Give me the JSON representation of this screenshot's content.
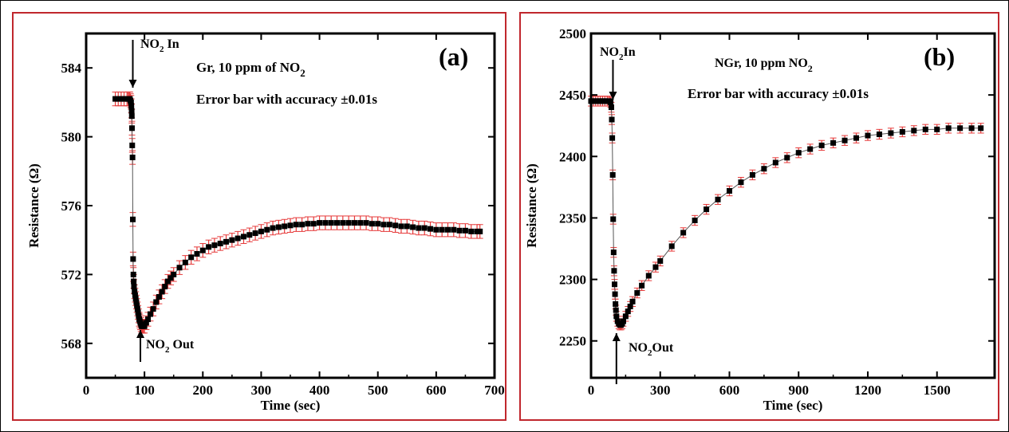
{
  "chart_data": [
    {
      "type": "scatter",
      "panel_label": "(a)",
      "title": "Gr, 10 ppm of NO",
      "title_sub": "2",
      "subtitle": "Error bar with accuracy ±0.01s",
      "xlabel": "Time (sec)",
      "ylabel": "Resistance (Ω)",
      "xlim": [
        0,
        700
      ],
      "ylim": [
        566,
        586
      ],
      "xticks": [
        0,
        100,
        200,
        300,
        400,
        500,
        600,
        700
      ],
      "yticks": [
        568,
        572,
        576,
        580,
        584
      ],
      "annotations": [
        {
          "pre": "NO",
          "sub": "2",
          "post": " In",
          "x": 80
        },
        {
          "pre": "NO",
          "sub": "2",
          "post": " Out",
          "x": 93
        }
      ],
      "series": [
        {
          "marker_color": "#000000",
          "errorbar_color": "#e63a3a",
          "error": 0.4,
          "x": [
            50,
            55,
            60,
            65,
            70,
            72,
            74,
            75,
            76,
            77,
            77.5,
            78,
            78.3,
            78.6,
            79,
            79.5,
            80,
            80.5,
            81,
            81.5,
            82,
            83,
            84,
            85,
            86,
            87,
            88,
            89,
            90,
            91,
            92,
            93,
            94,
            95,
            96,
            97,
            98,
            100,
            103,
            106,
            110,
            115,
            120,
            125,
            130,
            135,
            140,
            145,
            150,
            160,
            170,
            180,
            190,
            200,
            210,
            220,
            230,
            240,
            250,
            260,
            270,
            280,
            290,
            300,
            310,
            320,
            330,
            340,
            350,
            360,
            370,
            380,
            390,
            400,
            410,
            420,
            430,
            440,
            450,
            460,
            470,
            480,
            490,
            500,
            510,
            520,
            530,
            540,
            550,
            560,
            570,
            580,
            590,
            600,
            610,
            620,
            630,
            640,
            650,
            660,
            670,
            675
          ],
          "y": [
            582.2,
            582.2,
            582.2,
            582.2,
            582.2,
            582.2,
            582.2,
            582.2,
            582.1,
            582.0,
            581.8,
            581.5,
            581.2,
            580.5,
            579.5,
            578.8,
            575.2,
            572.9,
            572.0,
            571.6,
            571.3,
            571.0,
            570.8,
            570.6,
            570.4,
            570.2,
            570.0,
            569.8,
            569.6,
            569.4,
            569.3,
            569.2,
            569.1,
            569.0,
            569.0,
            569.0,
            569.0,
            569.0,
            569.2,
            569.4,
            569.7,
            570.0,
            570.4,
            570.7,
            571.0,
            571.3,
            571.6,
            571.8,
            572.0,
            572.4,
            572.7,
            573.0,
            573.2,
            573.4,
            573.6,
            573.7,
            573.8,
            573.9,
            574.0,
            574.1,
            574.2,
            574.3,
            574.4,
            574.5,
            574.6,
            574.7,
            574.75,
            574.8,
            574.85,
            574.9,
            574.9,
            574.95,
            574.95,
            575.0,
            575.0,
            575.0,
            575.0,
            575.0,
            575.0,
            575.0,
            575.0,
            575.0,
            574.95,
            574.95,
            574.9,
            574.9,
            574.85,
            574.8,
            574.8,
            574.75,
            574.7,
            574.7,
            574.65,
            574.6,
            574.6,
            574.6,
            574.6,
            574.55,
            574.55,
            574.5,
            574.5,
            574.5
          ]
        }
      ]
    },
    {
      "type": "scatter",
      "panel_label": "(b)",
      "title": "NGr, 10 ppm NO",
      "title_sub": "2",
      "subtitle": "Error bar with accuracy ±0.01s",
      "xlabel": "Time (sec)",
      "ylabel": "Resistance (Ω)",
      "xlim": [
        0,
        1750
      ],
      "ylim": [
        2220,
        2500
      ],
      "xticks": [
        0,
        300,
        600,
        900,
        1200,
        1500
      ],
      "yticks": [
        2250,
        2300,
        2350,
        2400,
        2450,
        2500
      ],
      "annotations": [
        {
          "pre": "NO",
          "sub": "2",
          "post": "In",
          "x": 95
        },
        {
          "pre": "NO",
          "sub": "2",
          "post": "Out",
          "x": 110
        }
      ],
      "series": [
        {
          "marker_color": "#000000",
          "errorbar_color": "#e63a3a",
          "error": 4,
          "x": [
            0,
            10,
            20,
            30,
            40,
            50,
            60,
            70,
            80,
            85,
            88,
            90,
            92,
            94,
            96,
            98,
            100,
            102,
            104,
            106,
            108,
            110,
            115,
            120,
            125,
            130,
            135,
            140,
            150,
            160,
            170,
            180,
            200,
            220,
            250,
            280,
            300,
            350,
            400,
            450,
            500,
            550,
            600,
            650,
            700,
            750,
            800,
            850,
            900,
            950,
            1000,
            1050,
            1100,
            1150,
            1200,
            1250,
            1300,
            1350,
            1400,
            1450,
            1500,
            1550,
            1600,
            1650,
            1690
          ],
          "y": [
            2445,
            2445,
            2445,
            2445,
            2445,
            2445,
            2445,
            2445,
            2445,
            2444,
            2440,
            2430,
            2415,
            2385,
            2349,
            2322,
            2307,
            2296,
            2288,
            2280,
            2275,
            2270,
            2266,
            2264,
            2263,
            2263,
            2264,
            2266,
            2270,
            2274,
            2278,
            2282,
            2289,
            2295,
            2303,
            2310,
            2315,
            2327,
            2338,
            2348,
            2357,
            2365,
            2372,
            2379,
            2385,
            2390,
            2395,
            2399,
            2403,
            2406,
            2409,
            2411,
            2413,
            2415,
            2417,
            2418,
            2419,
            2420,
            2421,
            2422,
            2422,
            2423,
            2423,
            2423,
            2423
          ]
        }
      ]
    }
  ]
}
